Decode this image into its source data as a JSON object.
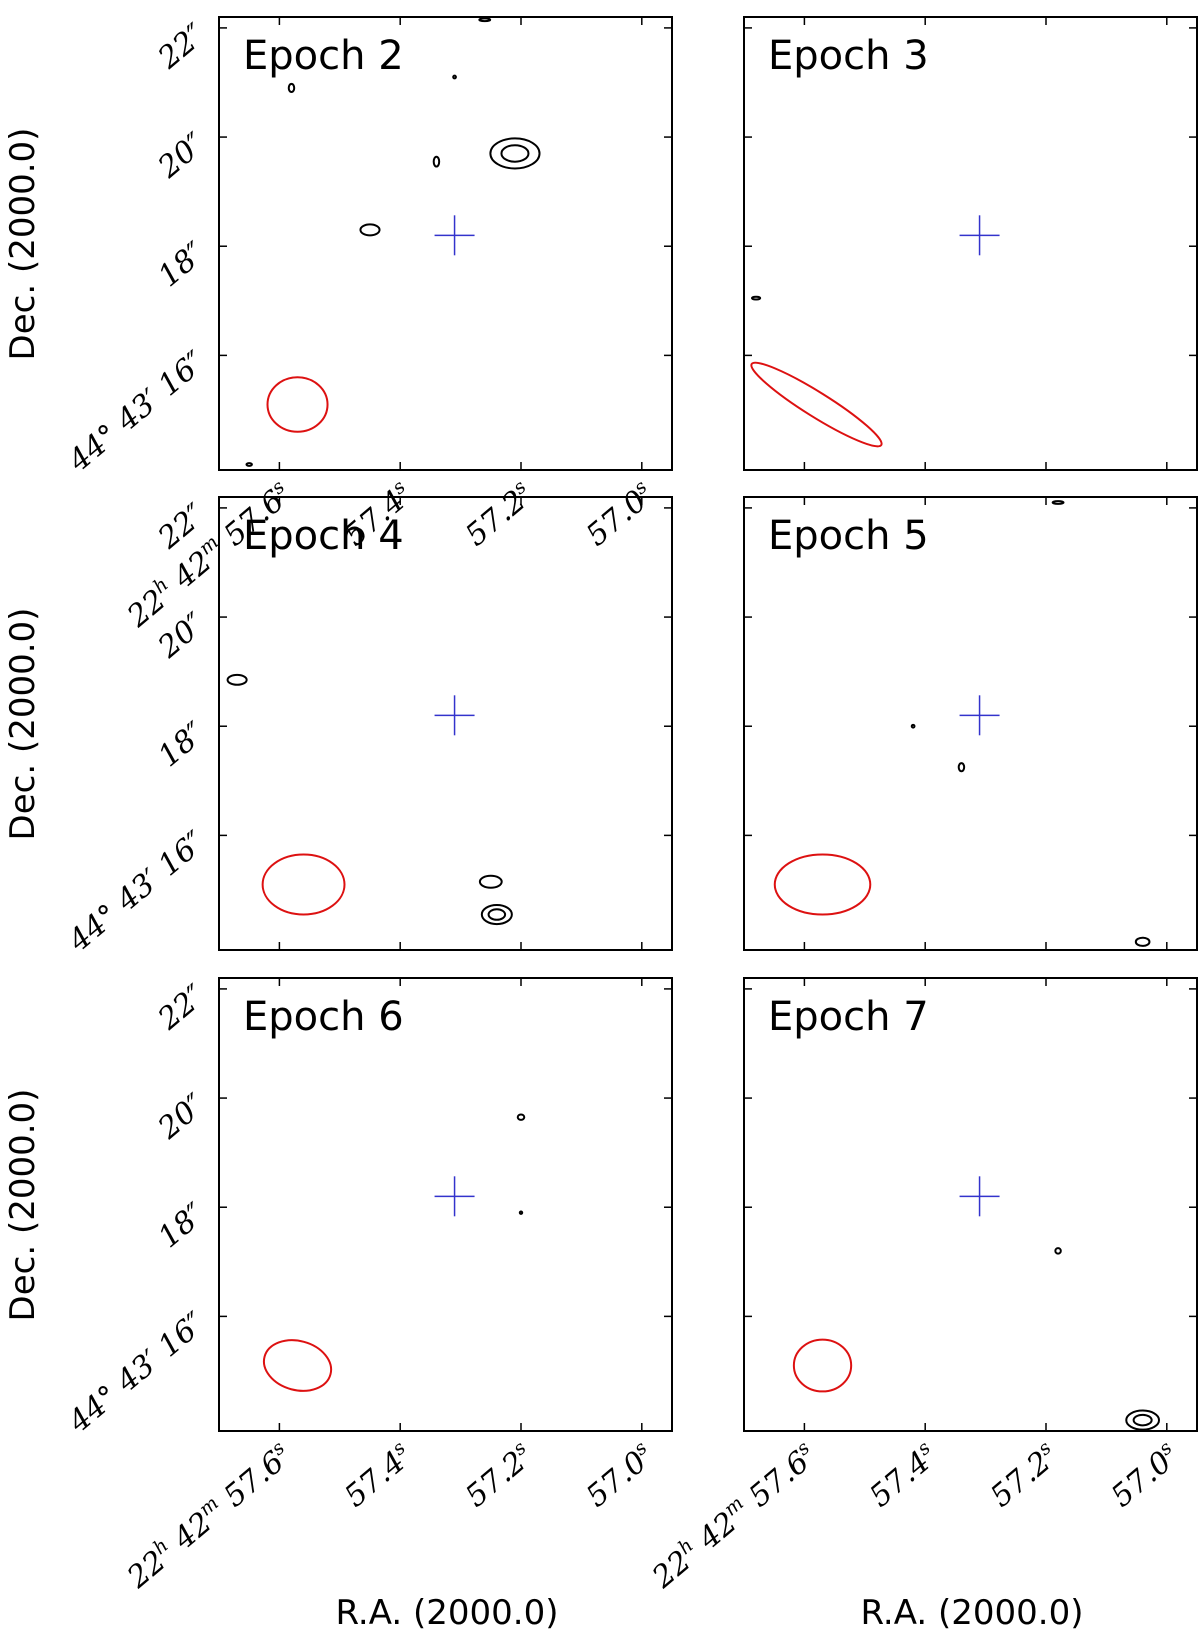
{
  "figure": {
    "ylabel": "Dec. (2000.0)",
    "xlabel": "R.A. (2000.0)"
  },
  "colors": {
    "beam": "#dd1111",
    "marker": "#3333cc",
    "contour": "#000000",
    "frame": "#000000"
  },
  "icons": {
    "position_marker": "plus-cross",
    "beam": "ellipse"
  },
  "chart_data": [
    {
      "type": "contour",
      "title": "Epoch 2",
      "xlim": [
        57.7,
        56.95
      ],
      "ylim": [
        22.2,
        13.9
      ],
      "yticks": [
        {
          "v": 22,
          "label": "22″"
        },
        {
          "v": 20,
          "label": "20″"
        },
        {
          "v": 18,
          "label": "18″"
        },
        {
          "v": 16,
          "label": "44° 43′ 16″"
        }
      ],
      "xticks": [
        {
          "v": 57.6,
          "label": "22h 42m 57.6s"
        },
        {
          "v": 57.4,
          "label": "57.4s"
        },
        {
          "v": 57.2,
          "label": "57.2s"
        },
        {
          "v": 57.0,
          "label": "57.0s"
        }
      ],
      "marker": {
        "ra": 57.31,
        "dec": 18.2
      },
      "beam": {
        "ra": 57.57,
        "dec": 15.1,
        "major_arcsec": 1.1,
        "minor_arcsec": 1.0,
        "pa_deg": 0
      },
      "contours": [
        {
          "ra": 57.21,
          "dec": 19.7,
          "w_arcsec": 0.9,
          "h_arcsec": 0.55,
          "levels": 2
        },
        {
          "ra": 57.45,
          "dec": 18.3,
          "w_arcsec": 0.35,
          "h_arcsec": 0.2,
          "levels": 1
        },
        {
          "ra": 57.34,
          "dec": 19.55,
          "w_arcsec": 0.1,
          "h_arcsec": 0.18,
          "levels": 1
        },
        {
          "ra": 57.58,
          "dec": 20.9,
          "w_arcsec": 0.1,
          "h_arcsec": 0.15,
          "levels": 1
        },
        {
          "ra": 57.26,
          "dec": 22.15,
          "w_arcsec": 0.2,
          "h_arcsec": 0.05,
          "levels": 1
        },
        {
          "ra": 57.31,
          "dec": 21.1,
          "w_arcsec": 0.05,
          "h_arcsec": 0.05,
          "levels": 1
        },
        {
          "ra": 57.65,
          "dec": 14.0,
          "w_arcsec": 0.1,
          "h_arcsec": 0.05,
          "levels": 1
        }
      ]
    },
    {
      "type": "contour",
      "title": "Epoch 3",
      "xlim": [
        57.7,
        56.95
      ],
      "ylim": [
        22.2,
        13.9
      ],
      "yticks": [
        {
          "v": 22,
          "label": ""
        },
        {
          "v": 20,
          "label": ""
        },
        {
          "v": 18,
          "label": ""
        },
        {
          "v": 16,
          "label": ""
        }
      ],
      "xticks": [
        {
          "v": 57.6,
          "label": ""
        },
        {
          "v": 57.4,
          "label": ""
        },
        {
          "v": 57.2,
          "label": ""
        },
        {
          "v": 57.0,
          "label": ""
        }
      ],
      "marker": {
        "ra": 57.31,
        "dec": 18.2
      },
      "beam": {
        "ra": 57.58,
        "dec": 15.1,
        "major_arcsec": 2.8,
        "minor_arcsec": 0.45,
        "pa_deg": 32
      },
      "contours": [
        {
          "ra": 57.68,
          "dec": 17.05,
          "w_arcsec": 0.15,
          "h_arcsec": 0.05,
          "levels": 1
        }
      ]
    },
    {
      "type": "contour",
      "title": "Epoch 4",
      "xlim": [
        57.7,
        56.95
      ],
      "ylim": [
        22.2,
        13.9
      ],
      "yticks": [
        {
          "v": 22,
          "label": "22″"
        },
        {
          "v": 20,
          "label": "20″"
        },
        {
          "v": 18,
          "label": "18″"
        },
        {
          "v": 16,
          "label": "44° 43′ 16″"
        }
      ],
      "xticks": [
        {
          "v": 57.6,
          "label": ""
        },
        {
          "v": 57.4,
          "label": ""
        },
        {
          "v": 57.2,
          "label": ""
        },
        {
          "v": 57.0,
          "label": ""
        }
      ],
      "marker": {
        "ra": 57.31,
        "dec": 18.2
      },
      "beam": {
        "ra": 57.56,
        "dec": 15.1,
        "major_arcsec": 1.5,
        "minor_arcsec": 1.1,
        "pa_deg": 0
      },
      "contours": [
        {
          "ra": 57.67,
          "dec": 18.85,
          "w_arcsec": 0.35,
          "h_arcsec": 0.18,
          "levels": 1
        },
        {
          "ra": 57.25,
          "dec": 15.15,
          "w_arcsec": 0.4,
          "h_arcsec": 0.22,
          "levels": 1
        },
        {
          "ra": 57.24,
          "dec": 14.55,
          "w_arcsec": 0.55,
          "h_arcsec": 0.35,
          "levels": 2
        }
      ]
    },
    {
      "type": "contour",
      "title": "Epoch 5",
      "xlim": [
        57.7,
        56.95
      ],
      "ylim": [
        22.2,
        13.9
      ],
      "yticks": [
        {
          "v": 22,
          "label": ""
        },
        {
          "v": 20,
          "label": ""
        },
        {
          "v": 18,
          "label": ""
        },
        {
          "v": 16,
          "label": ""
        }
      ],
      "xticks": [
        {
          "v": 57.6,
          "label": ""
        },
        {
          "v": 57.4,
          "label": ""
        },
        {
          "v": 57.2,
          "label": ""
        },
        {
          "v": 57.0,
          "label": ""
        }
      ],
      "marker": {
        "ra": 57.31,
        "dec": 18.2
      },
      "beam": {
        "ra": 57.57,
        "dec": 15.1,
        "major_arcsec": 1.75,
        "minor_arcsec": 1.1,
        "pa_deg": 0
      },
      "contours": [
        {
          "ra": 57.42,
          "dec": 18.0,
          "w_arcsec": 0.05,
          "h_arcsec": 0.05,
          "levels": 1
        },
        {
          "ra": 57.34,
          "dec": 17.25,
          "w_arcsec": 0.1,
          "h_arcsec": 0.15,
          "levels": 1
        },
        {
          "ra": 57.18,
          "dec": 22.1,
          "w_arcsec": 0.2,
          "h_arcsec": 0.05,
          "levels": 1
        },
        {
          "ra": 57.04,
          "dec": 14.05,
          "w_arcsec": 0.25,
          "h_arcsec": 0.15,
          "levels": 1
        }
      ]
    },
    {
      "type": "contour",
      "title": "Epoch 6",
      "xlim": [
        57.7,
        56.95
      ],
      "ylim": [
        22.2,
        13.9
      ],
      "yticks": [
        {
          "v": 22,
          "label": "22″"
        },
        {
          "v": 20,
          "label": "20″"
        },
        {
          "v": 18,
          "label": "18″"
        },
        {
          "v": 16,
          "label": "44° 43′ 16″"
        }
      ],
      "xticks": [
        {
          "v": 57.6,
          "label": "22h 42m 57.6s"
        },
        {
          "v": 57.4,
          "label": "57.4s"
        },
        {
          "v": 57.2,
          "label": "57.2s"
        },
        {
          "v": 57.0,
          "label": "57.0s"
        }
      ],
      "marker": {
        "ra": 57.31,
        "dec": 18.2
      },
      "beam": {
        "ra": 57.57,
        "dec": 15.1,
        "major_arcsec": 1.25,
        "minor_arcsec": 0.9,
        "pa_deg": 15
      },
      "contours": [
        {
          "ra": 57.2,
          "dec": 19.65,
          "w_arcsec": 0.12,
          "h_arcsec": 0.1,
          "levels": 1
        },
        {
          "ra": 57.2,
          "dec": 17.9,
          "w_arcsec": 0.03,
          "h_arcsec": 0.03,
          "levels": 1
        }
      ]
    },
    {
      "type": "contour",
      "title": "Epoch 7",
      "xlim": [
        57.7,
        56.95
      ],
      "ylim": [
        22.2,
        13.9
      ],
      "yticks": [
        {
          "v": 22,
          "label": ""
        },
        {
          "v": 20,
          "label": ""
        },
        {
          "v": 18,
          "label": ""
        },
        {
          "v": 16,
          "label": ""
        }
      ],
      "xticks": [
        {
          "v": 57.6,
          "label": "22h 42m 57.6s"
        },
        {
          "v": 57.4,
          "label": "57.4s"
        },
        {
          "v": 57.2,
          "label": "57.2s"
        },
        {
          "v": 57.0,
          "label": "57.0s"
        }
      ],
      "marker": {
        "ra": 57.31,
        "dec": 18.2
      },
      "beam": {
        "ra": 57.57,
        "dec": 15.1,
        "major_arcsec": 1.05,
        "minor_arcsec": 0.95,
        "pa_deg": 0
      },
      "contours": [
        {
          "ra": 57.18,
          "dec": 17.2,
          "w_arcsec": 0.1,
          "h_arcsec": 0.1,
          "levels": 1
        },
        {
          "ra": 57.04,
          "dec": 14.1,
          "w_arcsec": 0.6,
          "h_arcsec": 0.35,
          "levels": 2
        }
      ]
    }
  ]
}
